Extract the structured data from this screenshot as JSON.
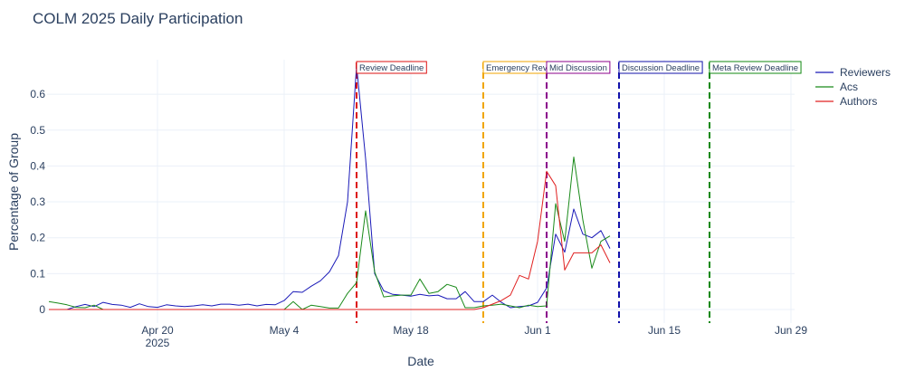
{
  "chart_data": {
    "type": "line",
    "title": "COLM 2025 Daily Participation",
    "xlabel": "Date",
    "ylabel": "Percentage of Group",
    "x_start": "2025-04-08",
    "x_range_days": [
      0,
      83
    ],
    "ylim": [
      -0.03,
      0.7
    ],
    "grid": true,
    "legend_position": "top-right",
    "x_ticks": [
      {
        "day": 12,
        "label": "Apr 20",
        "sublabel": "2025"
      },
      {
        "day": 26,
        "label": "May 4"
      },
      {
        "day": 40,
        "label": "May 18"
      },
      {
        "day": 54,
        "label": "Jun 1"
      },
      {
        "day": 68,
        "label": "Jun 15"
      },
      {
        "day": 82,
        "label": "Jun 29"
      }
    ],
    "y_ticks": [
      {
        "value": 0,
        "label": "0"
      },
      {
        "value": 0.1,
        "label": "0.1"
      },
      {
        "value": 0.2,
        "label": "0.2"
      },
      {
        "value": 0.3,
        "label": "0.3"
      },
      {
        "value": 0.4,
        "label": "0.4"
      },
      {
        "value": 0.5,
        "label": "0.5"
      },
      {
        "value": 0.6,
        "label": "0.6"
      }
    ],
    "series": [
      {
        "name": "Reviewers",
        "color": "#1a1ab8",
        "x": [
          0,
          1,
          2,
          3,
          4,
          5,
          6,
          7,
          8,
          9,
          10,
          11,
          12,
          13,
          14,
          15,
          16,
          17,
          18,
          19,
          20,
          21,
          22,
          23,
          24,
          25,
          26,
          27,
          28,
          29,
          30,
          31,
          32,
          33,
          34,
          35,
          36,
          37,
          38,
          39,
          40,
          41,
          42,
          43,
          44,
          45,
          46,
          47,
          48,
          49,
          50,
          51,
          52,
          53,
          54,
          55,
          56,
          57,
          58,
          59,
          60,
          61,
          62
        ],
        "values": [
          0.0,
          0.0,
          0.0,
          0.008,
          0.014,
          0.008,
          0.02,
          0.014,
          0.012,
          0.006,
          0.016,
          0.008,
          0.006,
          0.013,
          0.01,
          0.008,
          0.01,
          0.013,
          0.01,
          0.015,
          0.015,
          0.012,
          0.015,
          0.01,
          0.014,
          0.013,
          0.025,
          0.05,
          0.048,
          0.065,
          0.08,
          0.105,
          0.15,
          0.3,
          0.68,
          0.42,
          0.1,
          0.052,
          0.042,
          0.04,
          0.037,
          0.042,
          0.038,
          0.04,
          0.03,
          0.03,
          0.05,
          0.022,
          0.022,
          0.04,
          0.02,
          0.005,
          0.008,
          0.01,
          0.02,
          0.06,
          0.21,
          0.16,
          0.28,
          0.21,
          0.2,
          0.22,
          0.17
        ]
      },
      {
        "name": "Acs",
        "color": "#1a8a1a",
        "x": [
          0,
          1,
          2,
          3,
          4,
          5,
          6,
          7,
          8,
          9,
          10,
          11,
          12,
          13,
          14,
          15,
          16,
          17,
          18,
          19,
          20,
          21,
          22,
          23,
          24,
          25,
          26,
          27,
          28,
          29,
          30,
          31,
          32,
          33,
          34,
          35,
          36,
          37,
          38,
          39,
          40,
          41,
          42,
          43,
          44,
          45,
          46,
          47,
          48,
          49,
          50,
          51,
          52,
          53,
          54,
          55,
          56,
          57,
          58,
          59,
          60,
          61,
          62
        ],
        "values": [
          0.022,
          0.018,
          0.013,
          0.006,
          0.005,
          0.012,
          0.0,
          0.0,
          0.0,
          0.0,
          0.0,
          0.0,
          0.0,
          0.0,
          0.0,
          0.0,
          0.0,
          0.0,
          0.0,
          0.0,
          0.0,
          0.0,
          0.0,
          0.0,
          0.0,
          0.0,
          0.0,
          0.022,
          0.0,
          0.012,
          0.008,
          0.004,
          0.004,
          0.045,
          0.075,
          0.275,
          0.105,
          0.035,
          0.038,
          0.04,
          0.04,
          0.085,
          0.045,
          0.05,
          0.07,
          0.062,
          0.005,
          0.005,
          0.01,
          0.012,
          0.015,
          0.01,
          0.005,
          0.012,
          0.008,
          0.01,
          0.295,
          0.19,
          0.425,
          0.25,
          0.115,
          0.19,
          0.205
        ]
      },
      {
        "name": "Authors",
        "color": "#e02020",
        "x": [
          0,
          1,
          2,
          3,
          4,
          5,
          6,
          7,
          8,
          9,
          10,
          11,
          12,
          13,
          14,
          15,
          16,
          17,
          18,
          19,
          20,
          21,
          22,
          23,
          24,
          25,
          26,
          27,
          28,
          29,
          30,
          31,
          32,
          33,
          34,
          35,
          36,
          37,
          38,
          39,
          40,
          41,
          42,
          43,
          44,
          45,
          46,
          47,
          48,
          49,
          50,
          51,
          52,
          53,
          54,
          55,
          56,
          57,
          58,
          59,
          60,
          61,
          62
        ],
        "values": [
          0.0,
          0.0,
          0.0,
          0.0,
          0.0,
          0.0,
          0.0,
          0.0,
          0.0,
          0.0,
          0.0,
          0.0,
          0.0,
          0.0,
          0.0,
          0.0,
          0.0,
          0.0,
          0.0,
          0.0,
          0.0,
          0.0,
          0.0,
          0.0,
          0.0,
          0.0,
          0.0,
          0.0,
          0.0,
          0.0,
          0.0,
          0.0,
          0.0,
          0.0,
          0.0,
          0.0,
          0.0,
          0.0,
          0.0,
          0.0,
          0.0,
          0.0,
          0.0,
          0.0,
          0.0,
          0.0,
          0.0,
          0.0,
          0.005,
          0.015,
          0.025,
          0.04,
          0.095,
          0.085,
          0.19,
          0.385,
          0.345,
          0.11,
          0.158,
          0.158,
          0.158,
          0.18,
          0.13
        ]
      }
    ],
    "annotations": [
      {
        "label": "Review Deadline",
        "day": 34,
        "color": "#dd1111"
      },
      {
        "label": "Emergency Revi",
        "day": 48,
        "color": "#f0a500"
      },
      {
        "label": "Mid Discussion",
        "day": 55,
        "color": "#8b008b"
      },
      {
        "label": "Discussion Deadline",
        "day": 63,
        "color": "#1111aa"
      },
      {
        "label": "Meta Review Deadline",
        "day": 73,
        "color": "#118811"
      }
    ]
  }
}
